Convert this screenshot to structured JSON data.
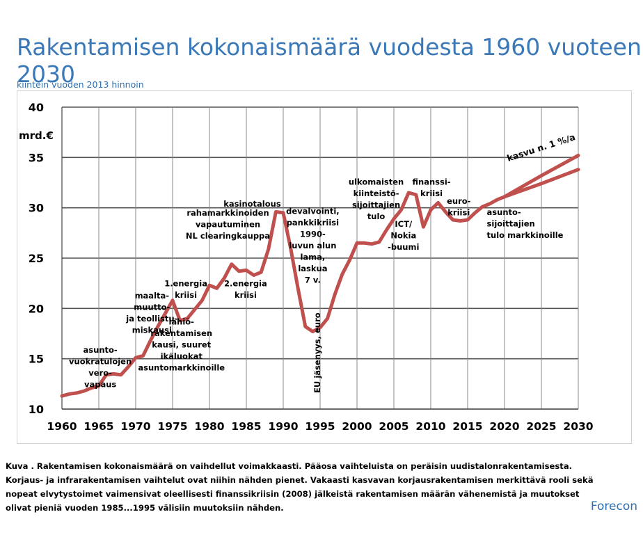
{
  "chart_data": {
    "type": "line",
    "title": "Rakentamisen kokonaismäärä vuodesta 1960 vuoteen 2030",
    "subtitle": "kiintein vuoden 2013 hinnoin",
    "ylabel": "mrd.€",
    "xlim": [
      1960,
      2030
    ],
    "ylim": [
      10,
      40
    ],
    "xticks": [
      1960,
      1965,
      1970,
      1975,
      1980,
      1985,
      1990,
      1995,
      2000,
      2005,
      2010,
      2015,
      2020,
      2025,
      2030
    ],
    "yticks": [
      10,
      15,
      20,
      25,
      30,
      35,
      40
    ],
    "grid": true,
    "series": [
      {
        "points": [
          [
            1960,
            11.3
          ],
          [
            1961,
            11.5
          ],
          [
            1962,
            11.6
          ],
          [
            1963,
            11.8
          ],
          [
            1964,
            12.1
          ],
          [
            1965,
            12.3
          ],
          [
            1966,
            13.4
          ],
          [
            1967,
            13.5
          ],
          [
            1968,
            13.4
          ],
          [
            1969,
            14.2
          ],
          [
            1970,
            15.1
          ],
          [
            1971,
            15.3
          ],
          [
            1972,
            16.8
          ],
          [
            1973,
            18.2
          ],
          [
            1974,
            19.5
          ],
          [
            1975,
            20.8
          ],
          [
            1976,
            18.8
          ],
          [
            1977,
            19.0
          ],
          [
            1978,
            19.9
          ],
          [
            1979,
            20.8
          ],
          [
            1980,
            22.3
          ],
          [
            1981,
            22.0
          ],
          [
            1982,
            23.0
          ],
          [
            1983,
            24.4
          ],
          [
            1984,
            23.7
          ],
          [
            1985,
            23.8
          ],
          [
            1986,
            23.3
          ],
          [
            1987,
            23.6
          ],
          [
            1988,
            25.9
          ],
          [
            1989,
            29.6
          ],
          [
            1990,
            29.5
          ],
          [
            1991,
            26.0
          ],
          [
            1992,
            22.0
          ],
          [
            1993,
            18.2
          ],
          [
            1994,
            17.7
          ],
          [
            1995,
            18.1
          ],
          [
            1996,
            19.0
          ],
          [
            1997,
            21.4
          ],
          [
            1998,
            23.4
          ],
          [
            1999,
            24.8
          ],
          [
            2000,
            26.5
          ],
          [
            2001,
            26.5
          ],
          [
            2002,
            26.4
          ],
          [
            2003,
            26.6
          ],
          [
            2004,
            27.8
          ],
          [
            2005,
            28.9
          ],
          [
            2006,
            29.8
          ],
          [
            2007,
            31.5
          ],
          [
            2008,
            31.3
          ],
          [
            2009,
            28.1
          ],
          [
            2010,
            29.8
          ],
          [
            2011,
            30.5
          ],
          [
            2012,
            29.6
          ],
          [
            2013,
            28.8
          ],
          [
            2014,
            28.7
          ],
          [
            2015,
            28.8
          ],
          [
            2016,
            29.5
          ],
          [
            2017,
            30.1
          ],
          [
            2018,
            30.4
          ],
          [
            2019,
            30.8
          ],
          [
            2020,
            31.1
          ]
        ]
      },
      {
        "points": [
          [
            2020,
            31.1
          ],
          [
            2025,
            33.2
          ],
          [
            2030,
            35.2
          ]
        ]
      },
      {
        "points": [
          [
            2020,
            31.1
          ],
          [
            2025,
            32.4
          ],
          [
            2030,
            33.8
          ]
        ]
      }
    ],
    "annotations": [
      {
        "lines": [
          "asunto-",
          "vuokratulojen",
          "vero-",
          "vapaus"
        ],
        "x": 1965.2,
        "y": 15.6,
        "align": "middle"
      },
      {
        "lines": [
          "maalta-",
          "muutto-",
          "ja teollistu-",
          "miskausi"
        ],
        "x": 1972.2,
        "y": 21.0,
        "align": "middle"
      },
      {
        "lines": [
          "1.energia",
          "kriisi"
        ],
        "x": 1976.8,
        "y": 22.2,
        "align": "middle"
      },
      {
        "lines": [
          "lähiö-",
          "rakentamisen",
          "kausi, suuret",
          "ikäluokat",
          "asuntomarkkinoille"
        ],
        "x": 1976.2,
        "y": 18.4,
        "align": "middle"
      },
      {
        "lines": [
          "rahamarkkinoiden",
          "vapautuminen",
          "NL clearingkauppa"
        ],
        "x": 1982.5,
        "y": 29.2,
        "align": "middle"
      },
      {
        "lines": [
          "kasinotalous"
        ],
        "x": 1985.8,
        "y": 30.1,
        "align": "middle"
      },
      {
        "lines": [
          "2.energia",
          "kriisi"
        ],
        "x": 1984.9,
        "y": 22.2,
        "align": "middle"
      },
      {
        "lines": [
          "devalvointi,",
          "pankkikriisi",
          "1990-",
          "luvun alun",
          "lama,",
          "laskua",
          "7 v."
        ],
        "x": 1994.0,
        "y": 29.4,
        "align": "middle"
      },
      {
        "lines": [
          "ulkomaisten",
          "kiinteistö-",
          "sijoittajien",
          "tulo"
        ],
        "x": 2002.6,
        "y": 32.3,
        "align": "middle"
      },
      {
        "lines": [
          "finanssi-",
          "kriisi"
        ],
        "x": 2010.1,
        "y": 32.3,
        "align": "middle"
      },
      {
        "lines": [
          "ICT/",
          "Nokia",
          "-buumi"
        ],
        "x": 2006.3,
        "y": 28.1,
        "align": "middle"
      },
      {
        "lines": [
          "euro-",
          "kriisi"
        ],
        "x": 2013.8,
        "y": 30.4,
        "align": "middle"
      },
      {
        "lines": [
          "asunto-",
          "sijoittajien",
          "tulo markkinoille"
        ],
        "x": 2017.6,
        "y": 29.3,
        "align": "start"
      },
      {
        "lines": [
          "kasvu n. 1 %/a"
        ],
        "x": 2020.5,
        "y": 34.6,
        "align": "start",
        "rotate": -18
      },
      {
        "lines": [
          "EU jäsenyys, euro"
        ],
        "x": 1995.0,
        "y": 11.6,
        "align": "start",
        "rotate": -90
      }
    ],
    "line_color": "#c0504d"
  },
  "caption_lines": [
    "Kuva . Rakentamisen kokonaismäärä on vaihdellut voimakkaasti. Pääosa vaihteluista on peräisin uudistalonrakentamisesta.",
    "Korjaus- ja infrarakentamisen vaihtelut ovat niihin nähden pienet. Vakaasti kasvavan korjausrakentamisen merkittävä rooli sekä",
    "nopeat elvytystoimet vaimensivat oleellisesti finanssikriisin (2008) jälkeistä rakentamisen määrän vähenemistä ja muutokset",
    "olivat pieniä vuoden 1985...1995 välisiin muutoksiin nähden."
  ],
  "brand": "Forecon"
}
